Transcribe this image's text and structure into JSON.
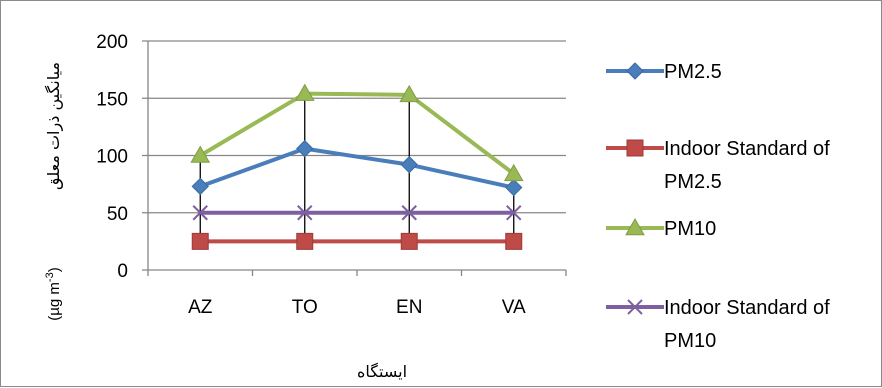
{
  "chart_data": {
    "type": "line",
    "categories": [
      "AZ",
      "TO",
      "EN",
      "VA"
    ],
    "series": [
      {
        "name": "PM2.5",
        "values": [
          73,
          106,
          92,
          72
        ],
        "color": "#4a7ebb",
        "marker": "diamond"
      },
      {
        "name": "Indoor Standard of PM2.5",
        "values": [
          25,
          25,
          25,
          25
        ],
        "color": "#be4b48",
        "marker": "square"
      },
      {
        "name": "PM10",
        "values": [
          100,
          154,
          153,
          84
        ],
        "color": "#98b954",
        "marker": "triangle"
      },
      {
        "name": "Indoor Standard of PM10",
        "values": [
          50,
          50,
          50,
          50
        ],
        "color": "#7d60a0",
        "marker": "x"
      }
    ],
    "legend_lines": [
      [
        "PM2.5"
      ],
      [
        "Indoor Standard of",
        "PM2.5"
      ],
      [
        "PM10"
      ],
      [
        "Indoor Standard of",
        "PM10"
      ]
    ],
    "xlabel": "ایستگاه",
    "ylabel": "میانگین ذرات معلق",
    "yunit": "(µg m",
    "yunit_sup": "-3",
    "yunit_close": ")",
    "ylim": [
      0,
      200
    ],
    "yticks": [
      0,
      50,
      100,
      150,
      200
    ],
    "grid": true,
    "drop_lines": true,
    "legend_position": "right"
  }
}
